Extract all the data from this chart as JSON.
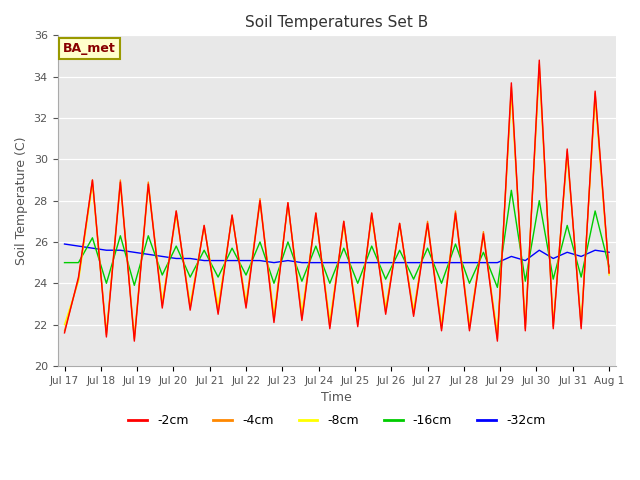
{
  "title": "Soil Temperatures Set B",
  "xlabel": "Time",
  "ylabel": "Soil Temperature (C)",
  "ylim": [
    20,
    36
  ],
  "yticks": [
    20,
    22,
    24,
    26,
    28,
    30,
    32,
    34,
    36
  ],
  "plot_bg_color": "#e8e8e8",
  "fig_bg_color": "#ffffff",
  "annotation_text": "BA_met",
  "annotation_bg": "#ffffcc",
  "annotation_border": "#999900",
  "annotation_text_color": "#880000",
  "colors": {
    "-2cm": "#ff0000",
    "-4cm": "#ff8800",
    "-8cm": "#ffff00",
    "-16cm": "#00cc00",
    "-32cm": "#0000ff"
  },
  "x_tick_labels": [
    "Jul 17",
    "Jul 18",
    "Jul 19",
    "Jul 20",
    "Jul 21",
    "Jul 22",
    "Jul 23",
    "Jul 24",
    "Jul 25",
    "Jul 26",
    "Jul 27",
    "Jul 28",
    "Jul 29",
    "Jul 30",
    "Jul 31",
    "Aug 1"
  ],
  "depth_2cm": [
    21.6,
    24.3,
    29.0,
    21.4,
    28.9,
    21.2,
    28.8,
    22.8,
    27.5,
    22.7,
    26.8,
    22.5,
    27.3,
    22.8,
    28.0,
    22.1,
    27.9,
    22.2,
    27.4,
    21.8,
    27.0,
    21.9,
    27.4,
    22.5,
    26.9,
    22.4,
    26.9,
    21.7,
    27.4,
    21.7,
    26.4,
    21.2,
    33.7,
    21.7,
    34.8,
    21.8,
    30.5,
    21.8,
    33.3,
    24.5
  ],
  "depth_4cm": [
    21.7,
    24.2,
    29.0,
    21.5,
    29.0,
    21.3,
    28.9,
    22.9,
    27.5,
    22.8,
    26.8,
    22.6,
    27.3,
    22.9,
    28.1,
    22.2,
    27.9,
    22.3,
    27.4,
    21.9,
    27.0,
    22.0,
    27.4,
    22.6,
    26.9,
    22.5,
    27.0,
    21.8,
    27.5,
    21.8,
    26.5,
    21.3,
    33.5,
    21.8,
    34.6,
    21.9,
    30.4,
    21.9,
    33.2,
    24.5
  ],
  "depth_8cm": [
    22.0,
    24.1,
    28.8,
    21.6,
    28.8,
    21.4,
    28.7,
    23.1,
    27.3,
    23.0,
    26.7,
    22.9,
    27.2,
    23.1,
    27.9,
    22.5,
    27.8,
    22.6,
    27.2,
    22.2,
    26.8,
    22.3,
    27.2,
    22.8,
    26.8,
    22.7,
    26.8,
    22.0,
    27.3,
    22.0,
    26.3,
    21.6,
    33.2,
    22.0,
    34.3,
    22.1,
    30.2,
    22.1,
    32.9,
    24.4
  ],
  "depth_16cm": [
    25.0,
    25.0,
    26.2,
    24.0,
    26.3,
    23.9,
    26.3,
    24.4,
    25.8,
    24.3,
    25.6,
    24.3,
    25.7,
    24.4,
    26.0,
    24.0,
    26.0,
    24.1,
    25.8,
    24.0,
    25.7,
    24.0,
    25.8,
    24.2,
    25.6,
    24.2,
    25.7,
    24.0,
    25.9,
    24.0,
    25.5,
    23.8,
    28.5,
    24.1,
    28.0,
    24.2,
    26.8,
    24.3,
    27.5,
    24.8
  ],
  "depth_32cm": [
    25.9,
    25.8,
    25.7,
    25.6,
    25.6,
    25.5,
    25.4,
    25.3,
    25.2,
    25.2,
    25.1,
    25.1,
    25.1,
    25.1,
    25.1,
    25.0,
    25.1,
    25.0,
    25.0,
    25.0,
    25.0,
    25.0,
    25.0,
    25.0,
    25.0,
    25.0,
    25.0,
    25.0,
    25.0,
    25.0,
    25.0,
    25.0,
    25.3,
    25.1,
    25.6,
    25.2,
    25.5,
    25.3,
    25.6,
    25.5
  ]
}
